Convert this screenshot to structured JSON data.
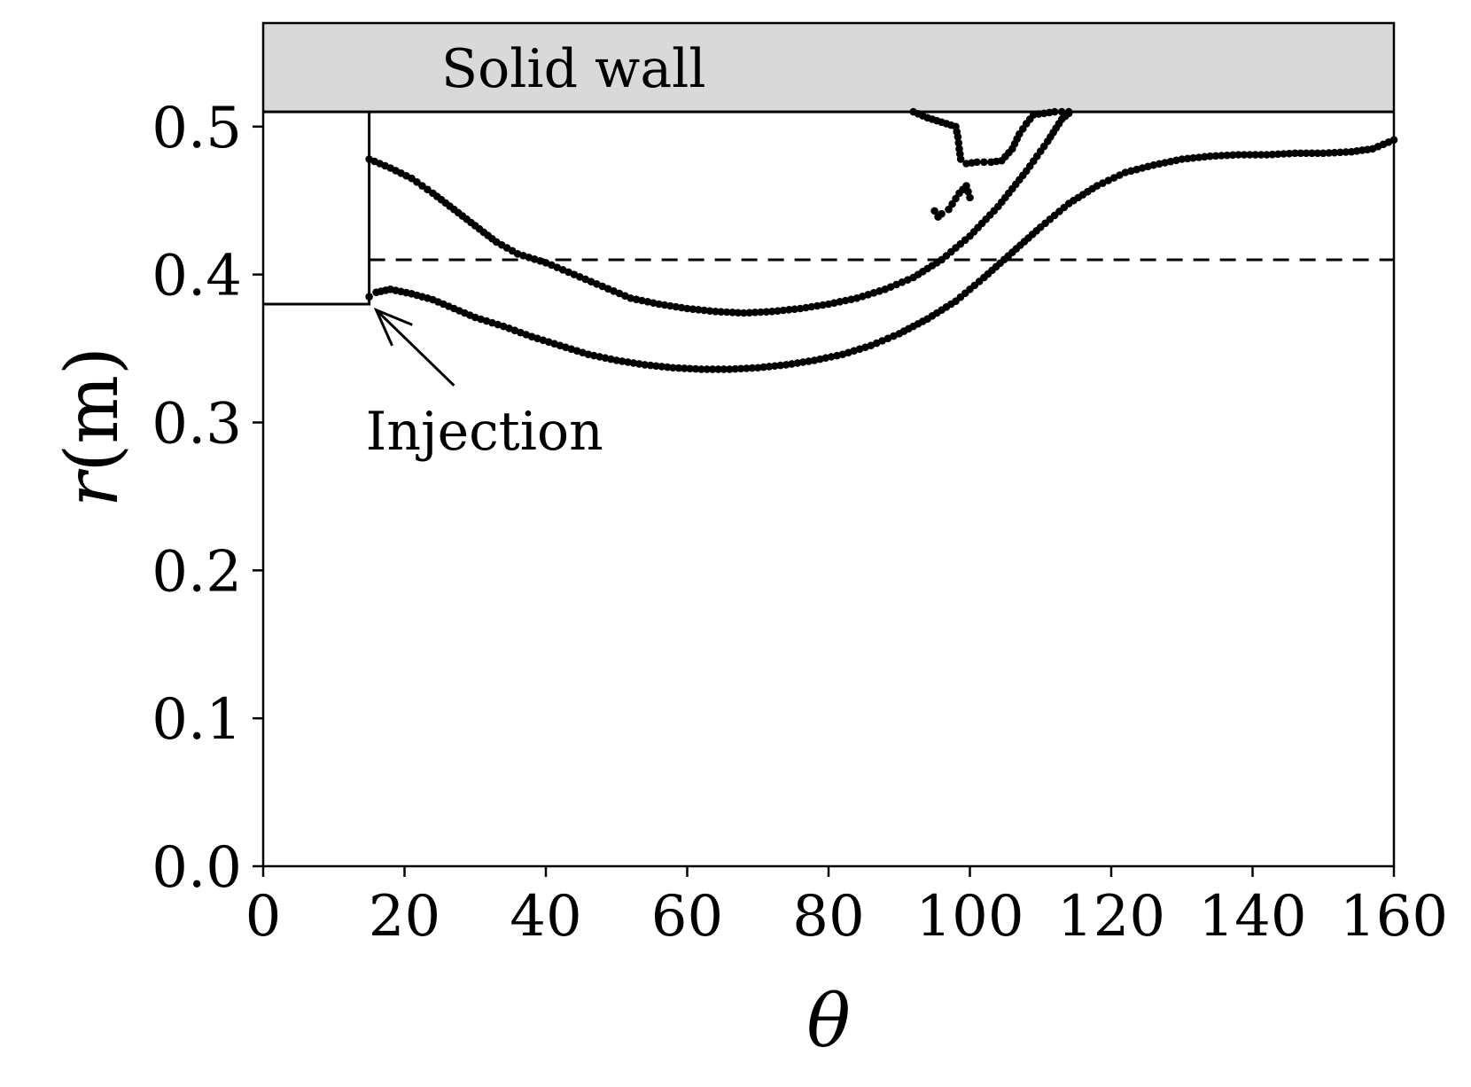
{
  "chart_data": {
    "type": "scatter",
    "title": "",
    "xlabel": "θ",
    "ylabel_var": "r",
    "ylabel_unit": "(m)",
    "xlim": [
      0,
      160
    ],
    "ylim": [
      0,
      0.57
    ],
    "xticks": [
      0,
      20,
      40,
      60,
      80,
      100,
      120,
      140,
      160
    ],
    "xtick_labels": [
      "0",
      "20",
      "40",
      "60",
      "80",
      "100",
      "120",
      "140",
      "160"
    ],
    "yticks": [
      0.0,
      0.1,
      0.2,
      0.3,
      0.4,
      0.5
    ],
    "ytick_labels": [
      "0.0",
      "0.1",
      "0.2",
      "0.3",
      "0.4",
      "0.5"
    ],
    "grid": false,
    "colors": {
      "points": "#000000",
      "wall_fill": "#d9d9d9",
      "lines": "#000000"
    },
    "wall": {
      "label": "Solid wall",
      "r_from": 0.51,
      "r_to": 0.57
    },
    "dashed_reference": {
      "r": 0.41
    },
    "inlet_outline": [
      [
        0,
        0.38
      ],
      [
        15,
        0.38
      ],
      [
        15,
        0.51
      ]
    ],
    "annotation": {
      "text": "Injection",
      "text_at": [
        27,
        0.295
      ],
      "arrow_tail": [
        27,
        0.325
      ],
      "arrow_head": [
        16,
        0.376
      ]
    },
    "series": [
      {
        "points": [
          [
            15,
            0.478
          ],
          [
            18,
            0.472
          ],
          [
            21,
            0.465
          ],
          [
            24,
            0.455
          ],
          [
            27,
            0.444
          ],
          [
            30,
            0.433
          ],
          [
            33,
            0.422
          ],
          [
            36,
            0.414
          ],
          [
            40,
            0.408
          ],
          [
            44,
            0.4
          ],
          [
            48,
            0.392
          ],
          [
            52,
            0.384
          ],
          [
            56,
            0.38
          ],
          [
            60,
            0.377
          ],
          [
            64,
            0.375
          ],
          [
            68,
            0.374
          ],
          [
            72,
            0.375
          ],
          [
            76,
            0.377
          ],
          [
            80,
            0.38
          ],
          [
            84,
            0.384
          ],
          [
            88,
            0.39
          ],
          [
            92,
            0.398
          ],
          [
            96,
            0.41
          ],
          [
            100,
            0.426
          ],
          [
            104,
            0.446
          ],
          [
            108,
            0.47
          ],
          [
            111,
            0.49
          ],
          [
            113,
            0.505
          ],
          [
            114,
            0.509
          ]
        ]
      },
      {
        "points": [
          [
            15,
            0.385
          ],
          [
            16,
            0.388
          ],
          [
            18,
            0.39
          ],
          [
            21,
            0.387
          ],
          [
            24,
            0.383
          ],
          [
            27,
            0.377
          ],
          [
            30,
            0.371
          ],
          [
            34,
            0.365
          ],
          [
            38,
            0.358
          ],
          [
            42,
            0.352
          ],
          [
            46,
            0.346
          ],
          [
            50,
            0.342
          ],
          [
            54,
            0.339
          ],
          [
            58,
            0.337
          ],
          [
            62,
            0.336
          ],
          [
            66,
            0.336
          ],
          [
            70,
            0.337
          ],
          [
            74,
            0.339
          ],
          [
            78,
            0.342
          ],
          [
            82,
            0.346
          ],
          [
            86,
            0.352
          ],
          [
            90,
            0.36
          ],
          [
            94,
            0.37
          ],
          [
            98,
            0.382
          ],
          [
            102,
            0.398
          ],
          [
            106,
            0.415
          ],
          [
            110,
            0.432
          ],
          [
            114,
            0.448
          ],
          [
            118,
            0.46
          ],
          [
            122,
            0.469
          ],
          [
            126,
            0.474
          ],
          [
            130,
            0.478
          ],
          [
            134,
            0.48
          ],
          [
            138,
            0.481
          ],
          [
            142,
            0.481
          ],
          [
            146,
            0.482
          ],
          [
            150,
            0.482
          ],
          [
            154,
            0.483
          ],
          [
            157,
            0.485
          ],
          [
            160,
            0.491
          ]
        ]
      },
      {
        "points": [
          [
            92,
            0.51
          ],
          [
            94,
            0.506
          ],
          [
            96,
            0.503
          ],
          [
            98,
            0.5
          ],
          [
            98.3,
            0.493
          ],
          [
            98.5,
            0.485
          ],
          [
            98.7,
            0.478
          ],
          [
            99.5,
            0.475
          ],
          [
            101,
            0.476
          ],
          [
            103,
            0.476
          ],
          [
            104.5,
            0.477
          ],
          [
            106,
            0.485
          ],
          [
            107,
            0.495
          ],
          [
            108,
            0.502
          ],
          [
            109,
            0.508
          ],
          [
            112,
            0.51
          ],
          [
            114,
            0.51
          ]
        ]
      },
      {
        "points": [
          [
            95,
            0.443
          ],
          [
            95.5,
            0.439
          ],
          [
            96,
            0.441
          ],
          [
            97,
            0.444
          ],
          [
            98.5,
            0.455
          ],
          [
            99.5,
            0.46
          ],
          [
            100,
            0.452
          ]
        ]
      }
    ]
  }
}
